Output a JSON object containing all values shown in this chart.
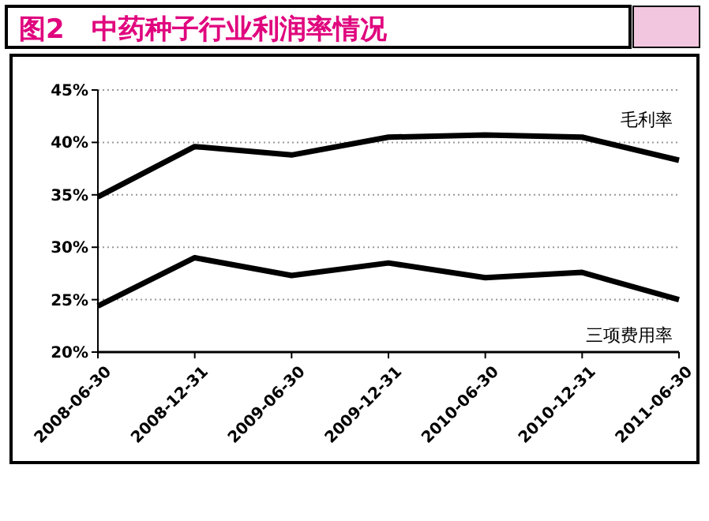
{
  "chart_data": {
    "type": "line",
    "title": "图2　中药种子行业利润率情况",
    "categories": [
      "2008-06-30",
      "2008-12-31",
      "2009-06-30",
      "2009-12-31",
      "2010-06-30",
      "2010-12-31",
      "2011-06-30"
    ],
    "series": [
      {
        "name": "毛利率",
        "color": "#000000",
        "values": [
          34.8,
          39.6,
          38.8,
          40.5,
          40.7,
          40.5,
          38.3
        ]
      },
      {
        "name": "三项费用率",
        "color": "#000000",
        "values": [
          24.4,
          29.0,
          27.3,
          28.5,
          27.1,
          27.6,
          25.0
        ]
      }
    ],
    "ylim": [
      20,
      45
    ],
    "yticks": [
      {
        "value": 20,
        "label": "20%"
      },
      {
        "value": 25,
        "label": "25%"
      },
      {
        "value": 30,
        "label": "30%"
      },
      {
        "value": 35,
        "label": "35%"
      },
      {
        "value": 40,
        "label": "40%"
      },
      {
        "value": 45,
        "label": "45%"
      }
    ],
    "grid": "y",
    "line_style": "solid",
    "marker": "none"
  }
}
